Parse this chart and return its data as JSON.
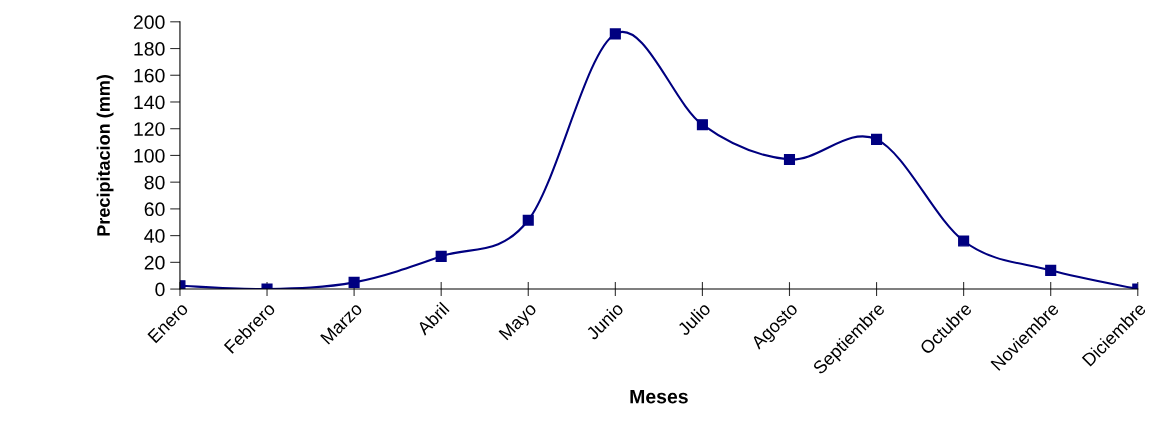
{
  "chart_data": {
    "type": "line",
    "xlabel": "Meses",
    "ylabel": "Precipitacion (mm)",
    "categories": [
      "Enero",
      "Febrero",
      "Marzo",
      "Abril",
      "Mayo",
      "Junio",
      "Julio",
      "Agosto",
      "Septiembre",
      "Octubre",
      "Noviembre",
      "Diciembre"
    ],
    "series": [
      {
        "color": "#000080",
        "values": [
          2.5,
          0,
          5,
          24.5,
          51.5,
          191,
          123,
          97,
          112,
          36,
          14,
          0
        ]
      }
    ],
    "ylim": [
      0,
      200
    ],
    "yticks": [
      0,
      20,
      40,
      60,
      80,
      100,
      120,
      140,
      160,
      180,
      200
    ],
    "marker": "square",
    "line_style": "solid",
    "grid": false,
    "legend": false
  }
}
